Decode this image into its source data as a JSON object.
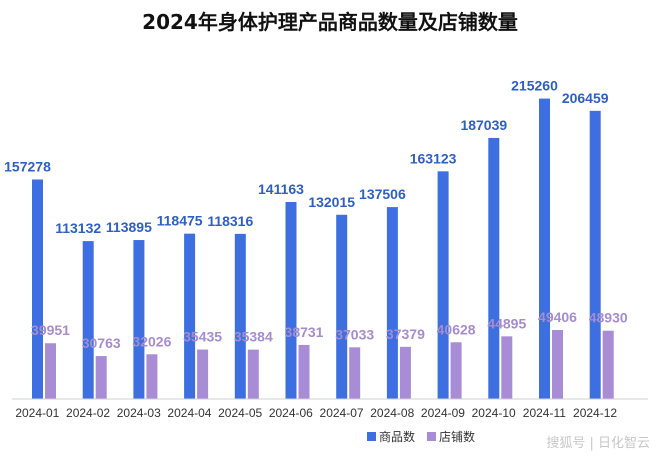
{
  "chart_data": {
    "type": "bar",
    "title": "2024年身体护理产品商品数量及店铺数量",
    "categories": [
      "2024-01",
      "2024-02",
      "2024-03",
      "2024-04",
      "2024-05",
      "2024-06",
      "2024-07",
      "2024-08",
      "2024-09",
      "2024-10",
      "2024-11",
      "2024-12"
    ],
    "series": [
      {
        "name": "商品数",
        "values": [
          157278,
          113132,
          113895,
          118475,
          118316,
          141163,
          132015,
          137506,
          163123,
          187039,
          215260,
          206459
        ],
        "color": "#3d6fe0"
      },
      {
        "name": "店铺数",
        "values": [
          39951,
          30763,
          32026,
          35435,
          35384,
          38731,
          37033,
          37379,
          40628,
          44895,
          49406,
          48930
        ],
        "color": "#a98cd6"
      }
    ],
    "ylim": [
      0,
      230000
    ],
    "grid": false,
    "legend_position": "bottom-right"
  },
  "watermark": "搜狐号 | 日化智云"
}
